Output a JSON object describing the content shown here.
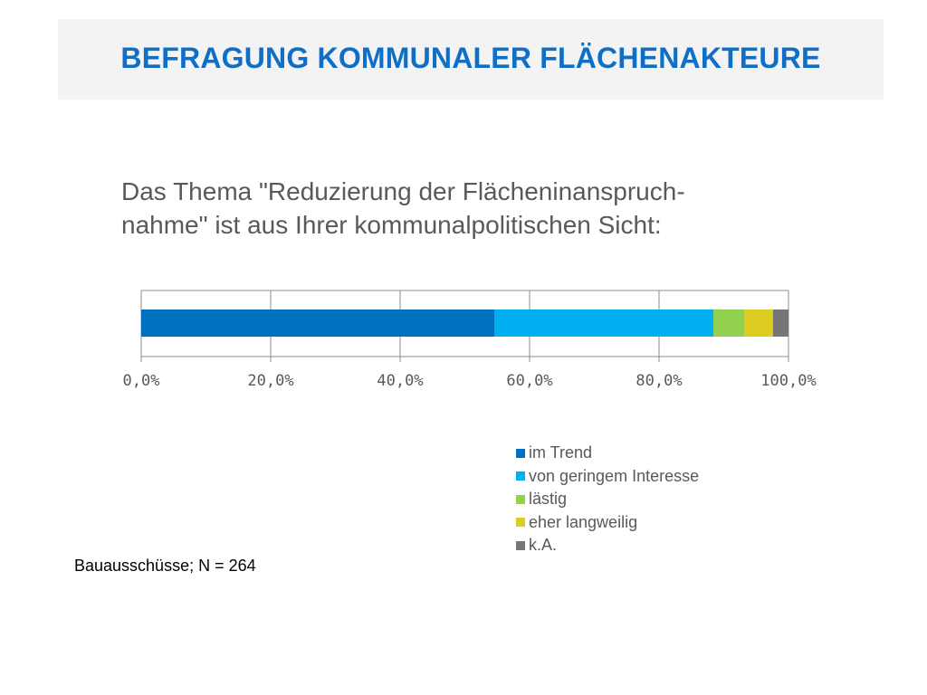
{
  "slide": {
    "title": "BEFRAGUNG KOMMUNALER FLÄCHENAKTEURE",
    "question_line1": "Das Thema \"Reduzierung der Flächeninanspruch-",
    "question_line2": "nahme\" ist aus Ihrer kommunalpolitischen Sicht:",
    "footnote": "Bauausschüsse; N = 264"
  },
  "colors": {
    "title": "#0f6fc6",
    "header_band": "#f3f3f3"
  },
  "chart_data": {
    "type": "bar",
    "orientation": "horizontal",
    "stacked": true,
    "categories": [
      ""
    ],
    "series": [
      {
        "name": "im Trend",
        "values": [
          54.6
        ],
        "color": "#0070c0"
      },
      {
        "name": "von geringem Interesse",
        "values": [
          33.8
        ],
        "color": "#00b0f0"
      },
      {
        "name": "lästig",
        "values": [
          4.8
        ],
        "color": "#92d050"
      },
      {
        "name": "eher langweilig",
        "values": [
          4.4
        ],
        "color": "#ddcc22"
      },
      {
        "name": "k.A.",
        "values": [
          2.4
        ],
        "color": "#767676"
      }
    ],
    "x_ticks": [
      "0,0%",
      "20,0%",
      "40,0%",
      "60,0%",
      "80,0%",
      "100,0%"
    ],
    "xlim": [
      0,
      100
    ],
    "grid": true,
    "legend_position": "bottom-right"
  }
}
